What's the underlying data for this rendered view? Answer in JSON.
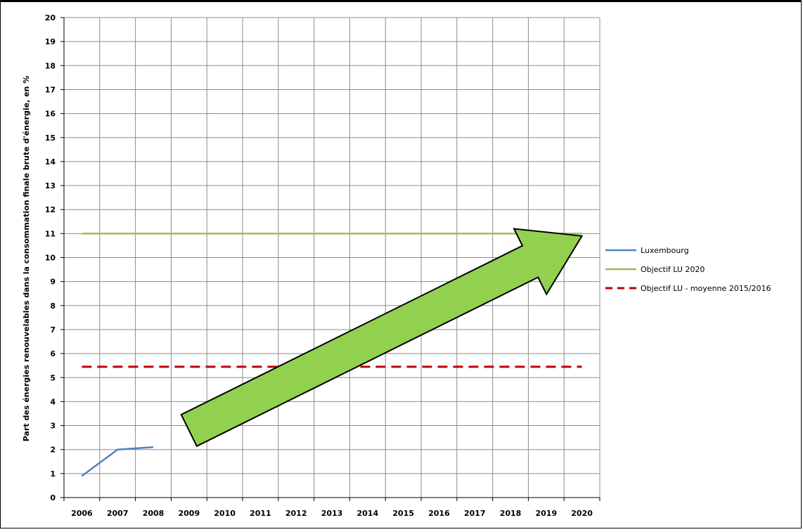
{
  "chart_data": {
    "type": "line",
    "title": "",
    "xlabel": "",
    "ylabel": "Part des énergies renouvelables dans la consommation finale brute d'énergie, en %",
    "categories": [
      "2006",
      "2007",
      "2008",
      "2009",
      "2010",
      "2011",
      "2012",
      "2013",
      "2014",
      "2015",
      "2016",
      "2017",
      "2018",
      "2019",
      "2020"
    ],
    "ylim": [
      0,
      20
    ],
    "yticks": [
      0,
      1,
      2,
      3,
      4,
      5,
      6,
      7,
      8,
      9,
      10,
      11,
      12,
      13,
      14,
      15,
      16,
      17,
      18,
      19,
      20
    ],
    "grid": true,
    "legend_position": "right",
    "series": [
      {
        "name": "Luxembourg",
        "color": "#4f81bd",
        "style": "solid",
        "values": [
          0.9,
          2.0,
          2.1,
          null,
          null,
          null,
          null,
          null,
          null,
          null,
          null,
          null,
          null,
          null,
          null
        ]
      },
      {
        "name": "Objectif LU 2020",
        "color": "#9bbb59",
        "style": "solid",
        "values": [
          11,
          11,
          11,
          11,
          11,
          11,
          11,
          11,
          11,
          11,
          11,
          11,
          11,
          11,
          11
        ]
      },
      {
        "name": "Objectif LU - moyenne 2015/2016",
        "color": "#c00000",
        "style": "dashed",
        "values": [
          5.45,
          5.45,
          5.45,
          5.45,
          5.45,
          5.45,
          5.45,
          5.45,
          5.45,
          5.45,
          5.45,
          5.45,
          5.45,
          5.45,
          5.45
        ]
      }
    ],
    "annotations": [
      {
        "type": "arrow",
        "color": "#92d050",
        "from": {
          "x": "2009",
          "y": 2.8
        },
        "to": {
          "x": "2020",
          "y": 10.9
        }
      }
    ]
  }
}
